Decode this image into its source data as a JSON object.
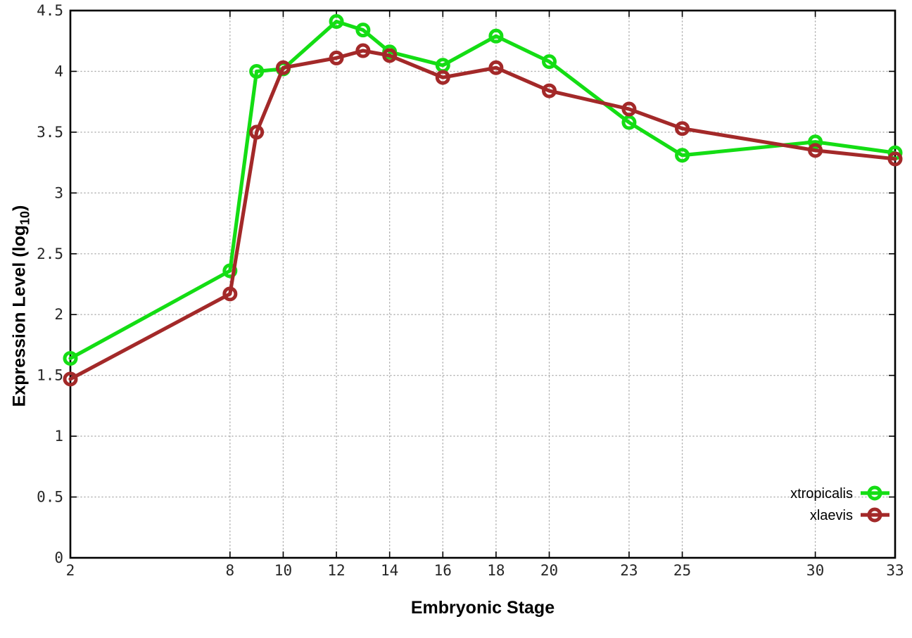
{
  "chart_data": {
    "type": "line",
    "x": [
      2,
      8,
      9,
      10,
      12,
      13,
      14,
      16,
      18,
      20,
      23,
      25,
      30,
      33
    ],
    "series": [
      {
        "name": "xtropicalis",
        "color": "#14dd14",
        "values": [
          1.64,
          2.36,
          4.0,
          4.02,
          4.41,
          4.34,
          4.16,
          4.05,
          4.29,
          4.08,
          3.58,
          3.31,
          3.42,
          3.33
        ]
      },
      {
        "name": "xlaevis",
        "color": "#a32929",
        "values": [
          1.47,
          2.17,
          3.5,
          4.03,
          4.11,
          4.17,
          4.13,
          3.95,
          4.03,
          3.84,
          3.69,
          3.53,
          3.35,
          3.28
        ]
      }
    ],
    "title": "",
    "xlabel": "Embryonic Stage",
    "ylabel": {
      "prefix": "Expression Level (log",
      "sub": "10",
      "suffix": ")"
    },
    "x_ticks": [
      2,
      8,
      10,
      12,
      14,
      16,
      18,
      20,
      23,
      25,
      30,
      33
    ],
    "y_ticks": [
      0,
      0.5,
      1,
      1.5,
      2,
      2.5,
      3,
      3.5,
      4,
      4.5
    ],
    "xlim": [
      2,
      33
    ],
    "ylim": [
      0,
      4.5
    ],
    "grid": true,
    "grid_color": "#ababab",
    "border_color": "#000000",
    "legend_position": "bottom-right",
    "marker": "open-circle"
  }
}
